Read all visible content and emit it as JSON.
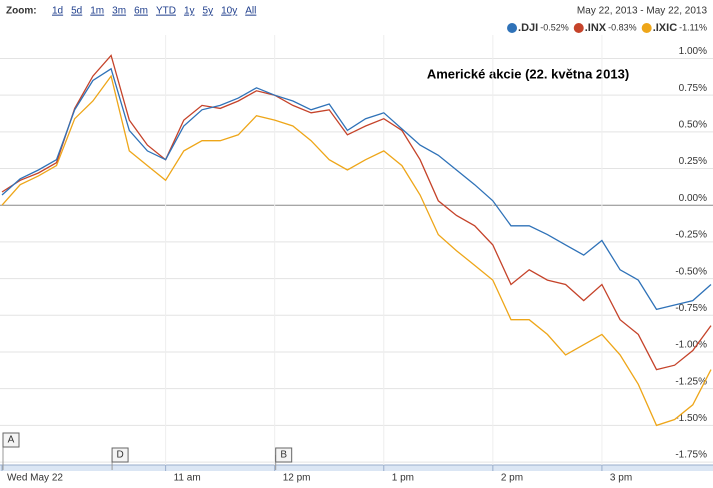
{
  "chart_data": {
    "type": "line",
    "title": "Americké akcie (22. května 2013)",
    "zoom": {
      "label": "Zoom:",
      "options": [
        "1d",
        "5d",
        "1m",
        "3m",
        "6m",
        "YTD",
        "1y",
        "5y",
        "10y",
        "All"
      ]
    },
    "date_range": "May 22, 2013  -  May 22, 2013",
    "x": [
      570,
      580,
      590,
      600,
      610,
      620,
      630,
      640,
      650,
      660,
      670,
      680,
      690,
      700,
      710,
      720,
      730,
      740,
      750,
      760,
      770,
      780,
      790,
      800,
      810,
      820,
      830,
      840,
      850,
      860,
      870,
      880,
      890,
      900,
      910,
      920,
      930,
      940,
      950,
      960
    ],
    "xlim": [
      570,
      960
    ],
    "xticks": [
      {
        "value": 570,
        "label": "Wed May 22"
      },
      {
        "value": 660,
        "label": "11 am"
      },
      {
        "value": 720,
        "label": "12 pm"
      },
      {
        "value": 780,
        "label": "1 pm"
      },
      {
        "value": 840,
        "label": "2 pm"
      },
      {
        "value": 900,
        "label": "3 pm"
      }
    ],
    "ylim": [
      -1.77,
      1.16
    ],
    "yticks": [
      {
        "value": 1.0,
        "label": "1.00%"
      },
      {
        "value": 0.75,
        "label": "0.75%"
      },
      {
        "value": 0.5,
        "label": "0.50%"
      },
      {
        "value": 0.25,
        "label": "0.25%"
      },
      {
        "value": 0,
        "label": "0.00%"
      },
      {
        "value": -0.25,
        "label": "-0.25%"
      },
      {
        "value": -0.5,
        "label": "-0.50%"
      },
      {
        "value": -0.75,
        "label": "-0.75%"
      },
      {
        "value": -1.0,
        "label": "-1.00%"
      },
      {
        "value": -1.25,
        "label": "-1.25%"
      },
      {
        "value": -1.5,
        "label": "-1.50%"
      },
      {
        "value": -1.75,
        "label": "-1.75%"
      }
    ],
    "grid": true,
    "legend": "top-right",
    "flags": [
      {
        "label": "A",
        "x": 570
      },
      {
        "label": "D",
        "x": 630
      },
      {
        "label": "B",
        "x": 720
      }
    ],
    "series": [
      {
        "name": ".DJI",
        "change": "-0.52%",
        "color": "#2f72b8",
        "values": [
          0.07,
          0.18,
          0.24,
          0.31,
          0.65,
          0.85,
          0.93,
          0.51,
          0.37,
          0.31,
          0.54,
          0.65,
          0.68,
          0.73,
          0.8,
          0.75,
          0.71,
          0.65,
          0.69,
          0.51,
          0.59,
          0.63,
          0.52,
          0.41,
          0.34,
          0.24,
          0.14,
          0.03,
          -0.14,
          -0.14,
          -0.2,
          -0.27,
          -0.34,
          -0.24,
          -0.44,
          -0.51,
          -0.71,
          -0.68,
          -0.65,
          -0.54
        ]
      },
      {
        "name": ".INX",
        "change": "-0.83%",
        "color": "#c5432a",
        "values": [
          0.09,
          0.17,
          0.22,
          0.29,
          0.66,
          0.88,
          1.02,
          0.58,
          0.41,
          0.31,
          0.58,
          0.68,
          0.66,
          0.71,
          0.78,
          0.75,
          0.68,
          0.63,
          0.65,
          0.48,
          0.54,
          0.59,
          0.51,
          0.31,
          0.03,
          -0.07,
          -0.14,
          -0.27,
          -0.54,
          -0.44,
          -0.51,
          -0.54,
          -0.65,
          -0.54,
          -0.78,
          -0.88,
          -1.12,
          -1.09,
          -0.99,
          -0.82
        ]
      },
      {
        "name": ".IXIC",
        "change": "-1.11%",
        "color": "#eea619",
        "values": [
          0.0,
          0.14,
          0.2,
          0.27,
          0.59,
          0.71,
          0.88,
          0.37,
          0.27,
          0.17,
          0.37,
          0.44,
          0.44,
          0.48,
          0.61,
          0.58,
          0.54,
          0.44,
          0.31,
          0.24,
          0.31,
          0.37,
          0.27,
          0.07,
          -0.2,
          -0.31,
          -0.41,
          -0.51,
          -0.78,
          -0.78,
          -0.88,
          -1.02,
          -0.95,
          -0.88,
          -1.02,
          -1.22,
          -1.5,
          -1.46,
          -1.36,
          -1.12
        ]
      }
    ]
  }
}
